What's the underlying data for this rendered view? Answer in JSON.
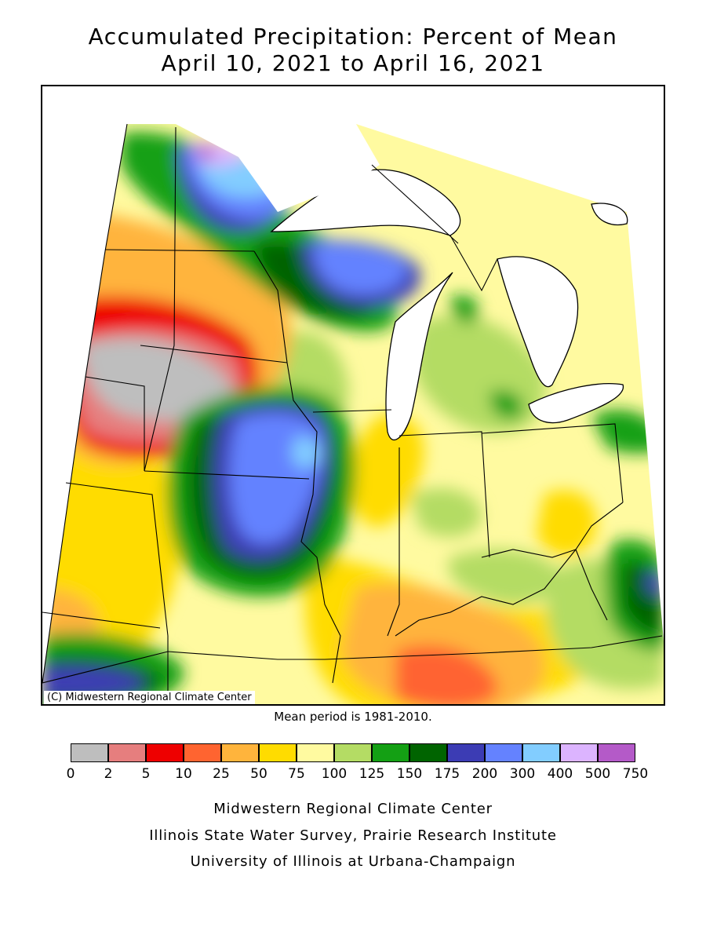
{
  "title": {
    "line1": "Accumulated Precipitation: Percent of Mean",
    "line2": "April 10, 2021 to April 16, 2021"
  },
  "map": {
    "copyright": "(C) Midwestern Regional Climate Center",
    "mean_note": "Mean period is 1981-2010.",
    "water_color": "#ffffff",
    "state_border_color": "#000000"
  },
  "legend": {
    "colors": [
      "#bebebe",
      "#e67e7e",
      "#ee0000",
      "#ff6430",
      "#ffb43c",
      "#ffdc00",
      "#fffaa0",
      "#b4dc64",
      "#14a014",
      "#006400",
      "#3c3cb4",
      "#6482ff",
      "#82cdff",
      "#dcb4ff",
      "#b45ac8"
    ],
    "labels": [
      "0",
      "2",
      "5",
      "10",
      "25",
      "50",
      "75",
      "100",
      "125",
      "150",
      "175",
      "200",
      "300",
      "400",
      "500",
      "750"
    ]
  },
  "credits": [
    "Midwestern Regional Climate Center",
    "Illinois State Water Survey, Prairie Research Institute",
    "University of Illinois at Urbana-Champaign"
  ]
}
